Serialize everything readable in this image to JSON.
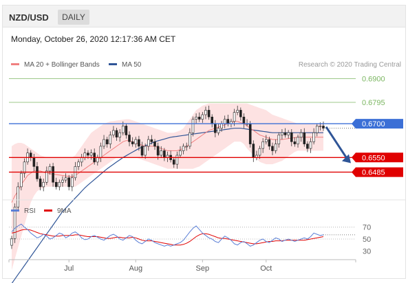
{
  "header": {
    "symbol": "NZD/USD",
    "period": "DAILY",
    "datetime": "Monday, October 26, 2020 12:17:36 AM CET"
  },
  "colors": {
    "ma20": "#f08080",
    "bollinger_fill": "#fde2e2",
    "ma50": "#2f5597",
    "resistance": "#7bb661",
    "pivot": "#3b6fd6",
    "support": "#e00000",
    "arrow": "#2f5597",
    "rsi": "#5b7fd6",
    "rsi_ma": "#e00000"
  },
  "chart_data": [
    {
      "type": "candlestick",
      "legend": [
        {
          "name": "MA 20 + Bollinger Bands",
          "color": "#f08080"
        },
        {
          "name": "MA 50",
          "color": "#2f5597"
        }
      ],
      "copyright": "Research © 2020 Trading Central",
      "x_labels": [
        "Jul",
        "Aug",
        "Sep",
        "Oct"
      ],
      "x_label_index": [
        18,
        39,
        60,
        80
      ],
      "levels": [
        {
          "value": 0.69,
          "label": "0.6900",
          "kind": "resistance"
        },
        {
          "value": 0.6795,
          "label": "0.6795",
          "kind": "resistance"
        },
        {
          "value": 0.67,
          "label": "0.6700",
          "kind": "pivot"
        },
        {
          "value": 0.655,
          "label": "0.6550",
          "kind": "support"
        },
        {
          "value": 0.6485,
          "label": "0.6485",
          "kind": "support"
        }
      ],
      "arrow": "down",
      "close": [
        0.619,
        0.633,
        0.642,
        0.648,
        0.653,
        0.657,
        0.655,
        0.651,
        0.6455,
        0.642,
        0.644,
        0.649,
        0.651,
        0.644,
        0.642,
        0.644,
        0.645,
        0.646,
        0.642,
        0.646,
        0.651,
        0.653,
        0.655,
        0.657,
        0.656,
        0.657,
        0.653,
        0.655,
        0.66,
        0.663,
        0.661,
        0.665,
        0.667,
        0.664,
        0.666,
        0.669,
        0.665,
        0.662,
        0.661,
        0.663,
        0.66,
        0.656,
        0.66,
        0.663,
        0.662,
        0.66,
        0.656,
        0.658,
        0.655,
        0.656,
        0.654,
        0.652,
        0.656,
        0.658,
        0.66,
        0.66,
        0.666,
        0.672,
        0.673,
        0.672,
        0.674,
        0.676,
        0.673,
        0.67,
        0.666,
        0.668,
        0.67,
        0.672,
        0.67,
        0.671,
        0.675,
        0.676,
        0.673,
        0.67,
        0.67,
        0.661,
        0.655,
        0.656,
        0.659,
        0.662,
        0.663,
        0.66,
        0.658,
        0.661,
        0.665,
        0.666,
        0.665,
        0.666,
        0.662,
        0.661,
        0.664,
        0.666,
        0.661,
        0.659,
        0.662,
        0.666,
        0.669,
        0.669,
        0.668
      ],
      "ma20": [
        0.635,
        0.638,
        0.64,
        0.643,
        0.645,
        0.647,
        0.648,
        0.649,
        0.649,
        0.649,
        0.6485,
        0.648,
        0.6478,
        0.6476,
        0.6474,
        0.6472,
        0.647,
        0.6468,
        0.6466,
        0.6464,
        0.647,
        0.648,
        0.649,
        0.65,
        0.651,
        0.652,
        0.653,
        0.654,
        0.655,
        0.656,
        0.657,
        0.658,
        0.659,
        0.66,
        0.661,
        0.662,
        0.6625,
        0.6625,
        0.662,
        0.6615,
        0.661,
        0.6605,
        0.66,
        0.66,
        0.66,
        0.66,
        0.6595,
        0.659,
        0.6585,
        0.658,
        0.658,
        0.658,
        0.658,
        0.6585,
        0.659,
        0.66,
        0.661,
        0.662,
        0.663,
        0.664,
        0.665,
        0.666,
        0.667,
        0.6675,
        0.668,
        0.6685,
        0.669,
        0.6695,
        0.67,
        0.6705,
        0.671,
        0.671,
        0.6705,
        0.67,
        0.669,
        0.668,
        0.667,
        0.666,
        0.665,
        0.6645,
        0.664,
        0.6635,
        0.663,
        0.663,
        0.663,
        0.663,
        0.6632,
        0.6634,
        0.6636,
        0.6638,
        0.664,
        0.664,
        0.664,
        0.664,
        0.664,
        0.664,
        0.664,
        0.664,
        0.664
      ],
      "bb_upper": [
        0.66,
        0.661,
        0.6615,
        0.6615,
        0.661,
        0.66,
        0.659,
        0.658,
        0.657,
        0.656,
        0.6555,
        0.655,
        0.655,
        0.655,
        0.655,
        0.655,
        0.655,
        0.655,
        0.655,
        0.655,
        0.656,
        0.658,
        0.66,
        0.662,
        0.664,
        0.666,
        0.667,
        0.668,
        0.669,
        0.67,
        0.6705,
        0.671,
        0.6712,
        0.6714,
        0.6716,
        0.6718,
        0.672,
        0.672,
        0.6715,
        0.671,
        0.6705,
        0.67,
        0.6695,
        0.669,
        0.6685,
        0.668,
        0.6675,
        0.667,
        0.6665,
        0.666,
        0.666,
        0.666,
        0.6665,
        0.667,
        0.668,
        0.67,
        0.672,
        0.674,
        0.676,
        0.677,
        0.678,
        0.6785,
        0.679,
        0.679,
        0.679,
        0.679,
        0.679,
        0.679,
        0.679,
        0.679,
        0.679,
        0.679,
        0.679,
        0.679,
        0.679,
        0.6785,
        0.678,
        0.6775,
        0.677,
        0.6765,
        0.676,
        0.675,
        0.674,
        0.6735,
        0.673,
        0.6725,
        0.672,
        0.6715,
        0.671,
        0.6705,
        0.67,
        0.67,
        0.67,
        0.67,
        0.67,
        0.67,
        0.67,
        0.67,
        0.67
      ],
      "bb_lower": [
        0.605,
        0.61,
        0.615,
        0.62,
        0.625,
        0.63,
        0.635,
        0.638,
        0.64,
        0.641,
        0.6415,
        0.642,
        0.642,
        0.642,
        0.642,
        0.642,
        0.642,
        0.642,
        0.642,
        0.642,
        0.642,
        0.643,
        0.644,
        0.645,
        0.646,
        0.647,
        0.648,
        0.649,
        0.65,
        0.651,
        0.652,
        0.653,
        0.654,
        0.655,
        0.655,
        0.655,
        0.655,
        0.655,
        0.655,
        0.655,
        0.6545,
        0.654,
        0.6535,
        0.653,
        0.6525,
        0.652,
        0.6515,
        0.651,
        0.6505,
        0.65,
        0.65,
        0.65,
        0.65,
        0.65,
        0.65,
        0.65,
        0.65,
        0.65,
        0.6505,
        0.651,
        0.652,
        0.653,
        0.654,
        0.655,
        0.656,
        0.657,
        0.658,
        0.659,
        0.66,
        0.661,
        0.662,
        0.662,
        0.662,
        0.661,
        0.659,
        0.6575,
        0.656,
        0.6545,
        0.653,
        0.6525,
        0.652,
        0.652,
        0.652,
        0.6525,
        0.653,
        0.6535,
        0.6545,
        0.6555,
        0.6565,
        0.6575,
        0.658,
        0.658,
        0.658,
        0.658,
        0.658,
        0.658,
        0.658,
        0.658,
        0.658
      ],
      "ma50": [
        0.599,
        0.601,
        0.603,
        0.605,
        0.607,
        0.609,
        0.611,
        0.613,
        0.615,
        0.617,
        0.619,
        0.621,
        0.623,
        0.625,
        0.627,
        0.629,
        0.631,
        0.6325,
        0.634,
        0.6355,
        0.637,
        0.6385,
        0.64,
        0.6415,
        0.6428,
        0.644,
        0.6452,
        0.6464,
        0.6476,
        0.6488,
        0.65,
        0.651,
        0.652,
        0.653,
        0.654,
        0.655,
        0.6558,
        0.6566,
        0.6574,
        0.6582,
        0.659,
        0.6596,
        0.6602,
        0.6608,
        0.6614,
        0.662,
        0.6624,
        0.6628,
        0.6632,
        0.6636,
        0.664,
        0.6642,
        0.6644,
        0.6646,
        0.6648,
        0.665,
        0.6652,
        0.6654,
        0.6656,
        0.6658,
        0.666,
        0.6662,
        0.6664,
        0.6666,
        0.6668,
        0.667,
        0.6672,
        0.6674,
        0.6676,
        0.6678,
        0.668,
        0.668,
        0.668,
        0.6678,
        0.6676,
        0.6674,
        0.6672,
        0.667,
        0.6668,
        0.6666,
        0.6664,
        0.6662,
        0.666,
        0.666,
        0.666,
        0.666,
        0.666,
        0.666,
        0.666,
        0.666,
        0.666,
        0.666,
        0.666,
        0.666,
        0.666,
        0.666,
        0.666,
        0.666,
        0.666
      ],
      "ylim": [
        0.638,
        0.692
      ]
    },
    {
      "type": "line",
      "legend": [
        {
          "name": "RSI",
          "color": "#5b7fd6"
        },
        {
          "name": "9MA",
          "color": "#e00000"
        }
      ],
      "y_ticks": [
        70,
        50,
        30
      ],
      "ylim": [
        20,
        80
      ],
      "rsi": [
        62,
        68,
        72,
        75,
        70,
        66,
        60,
        56,
        52,
        54,
        58,
        55,
        50,
        52,
        56,
        60,
        58,
        52,
        55,
        60,
        62,
        58,
        52,
        49,
        50,
        54,
        56,
        53,
        50,
        48,
        52,
        56,
        58,
        55,
        50,
        48,
        52,
        56,
        54,
        48,
        44,
        42,
        46,
        50,
        48,
        44,
        42,
        40,
        38,
        40,
        38,
        40,
        42,
        44,
        48,
        55,
        62,
        68,
        72,
        66,
        60,
        56,
        52,
        50,
        46,
        44,
        50,
        55,
        52,
        48,
        42,
        40,
        44,
        46,
        42,
        38,
        40,
        44,
        48,
        50,
        46,
        44,
        48,
        52,
        50,
        46,
        48,
        50,
        48,
        46,
        48,
        50,
        52,
        50,
        54,
        60,
        58,
        56,
        57
      ],
      "rsi_ma": [
        60,
        61,
        63,
        65,
        66,
        66,
        65,
        63,
        61,
        59,
        58,
        57,
        56,
        55,
        55,
        55,
        56,
        56,
        56,
        56,
        57,
        57,
        56,
        55,
        54,
        54,
        54,
        54,
        53,
        52,
        51,
        51,
        52,
        53,
        53,
        52,
        52,
        52,
        53,
        52,
        50,
        48,
        47,
        47,
        47,
        46,
        45,
        44,
        43,
        42,
        41,
        40,
        40,
        40,
        41,
        43,
        46,
        50,
        54,
        57,
        59,
        59,
        58,
        56,
        54,
        52,
        51,
        51,
        50,
        49,
        48,
        47,
        46,
        45,
        44,
        43,
        42,
        42,
        43,
        44,
        45,
        46,
        46,
        47,
        47,
        47,
        48,
        48,
        48,
        48,
        48,
        48,
        48,
        49,
        50,
        51,
        52,
        53,
        54
      ]
    }
  ]
}
